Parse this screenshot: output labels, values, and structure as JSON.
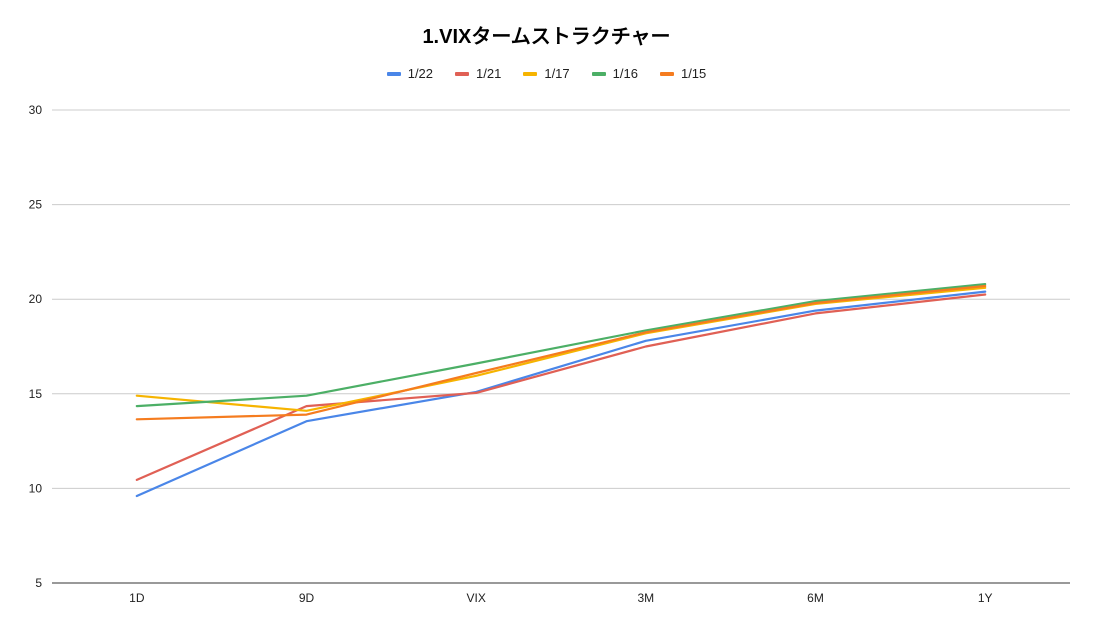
{
  "chart_data": {
    "type": "line",
    "title": "1.VIXタームストラクチャー",
    "xlabel": "",
    "ylabel": "",
    "categories": [
      "1D",
      "9D",
      "VIX",
      "3M",
      "6M",
      "1Y"
    ],
    "ylim": [
      5,
      30
    ],
    "yticks": [
      "5",
      "10",
      "15",
      "20",
      "25",
      "30"
    ],
    "grid": true,
    "legend_position": "top",
    "series": [
      {
        "name": "1/22",
        "color": "#4a86e8",
        "values": [
          9.6,
          13.55,
          15.1,
          17.8,
          19.4,
          20.4
        ]
      },
      {
        "name": "1/21",
        "color": "#e06055",
        "values": [
          10.45,
          14.35,
          15.05,
          17.5,
          19.25,
          20.25
        ]
      },
      {
        "name": "1/17",
        "color": "#f6b400",
        "values": [
          14.9,
          14.1,
          15.95,
          18.2,
          19.75,
          20.6
        ]
      },
      {
        "name": "1/16",
        "color": "#4caf66",
        "values": [
          14.35,
          14.9,
          16.6,
          18.35,
          19.9,
          20.8
        ]
      },
      {
        "name": "1/15",
        "color": "#f57c1f",
        "values": [
          13.65,
          13.9,
          16.1,
          18.25,
          19.8,
          20.7
        ]
      }
    ]
  }
}
